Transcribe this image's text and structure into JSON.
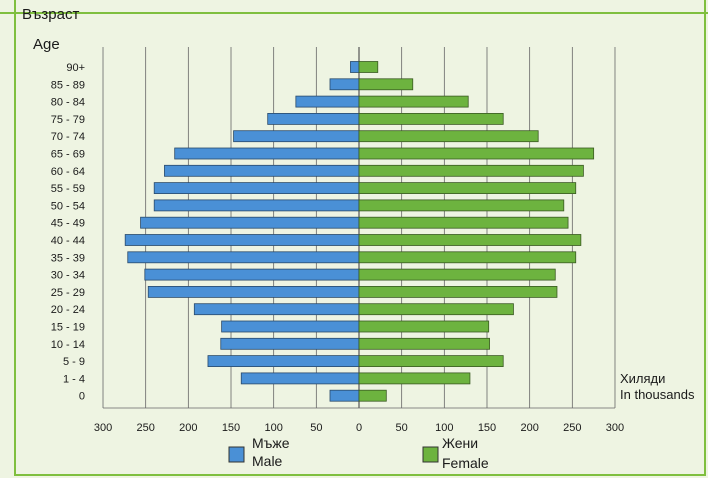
{
  "chart_data": {
    "type": "bar",
    "ylabel_bg": "Възраст",
    "ylabel_en": "Age",
    "unit_bg": "Хиляди",
    "unit_en": "In thousands",
    "categories": [
      "90+",
      "85 - 89",
      "80 - 84",
      "75 - 79",
      "70 - 74",
      "65 - 69",
      "60 - 64",
      "55 - 59",
      "50 - 54",
      "45 - 49",
      "40 - 44",
      "35 - 39",
      "30 - 34",
      "25 - 29",
      "20 - 24",
      "15 - 19",
      "10 - 14",
      "5 -  9",
      "1 -  4",
      "0"
    ],
    "series": [
      {
        "name": "Мъже",
        "name_en": "Male",
        "color": "#4a90d6",
        "values": [
          10,
          34,
          74,
          107,
          147,
          216,
          228,
          240,
          240,
          256,
          274,
          271,
          251,
          247,
          193,
          161,
          162,
          177,
          138,
          34
        ]
      },
      {
        "name": "Жени",
        "name_en": "Female",
        "color": "#6db33f",
        "values": [
          22,
          63,
          128,
          169,
          210,
          275,
          263,
          254,
          240,
          245,
          260,
          254,
          230,
          232,
          181,
          152,
          153,
          169,
          130,
          32
        ]
      }
    ],
    "xticks": [
      300,
      250,
      200,
      150,
      100,
      50,
      0,
      50,
      100,
      150,
      200,
      250,
      300
    ],
    "xlim": [
      -300,
      300
    ],
    "grid": true,
    "legend": "bottom"
  }
}
